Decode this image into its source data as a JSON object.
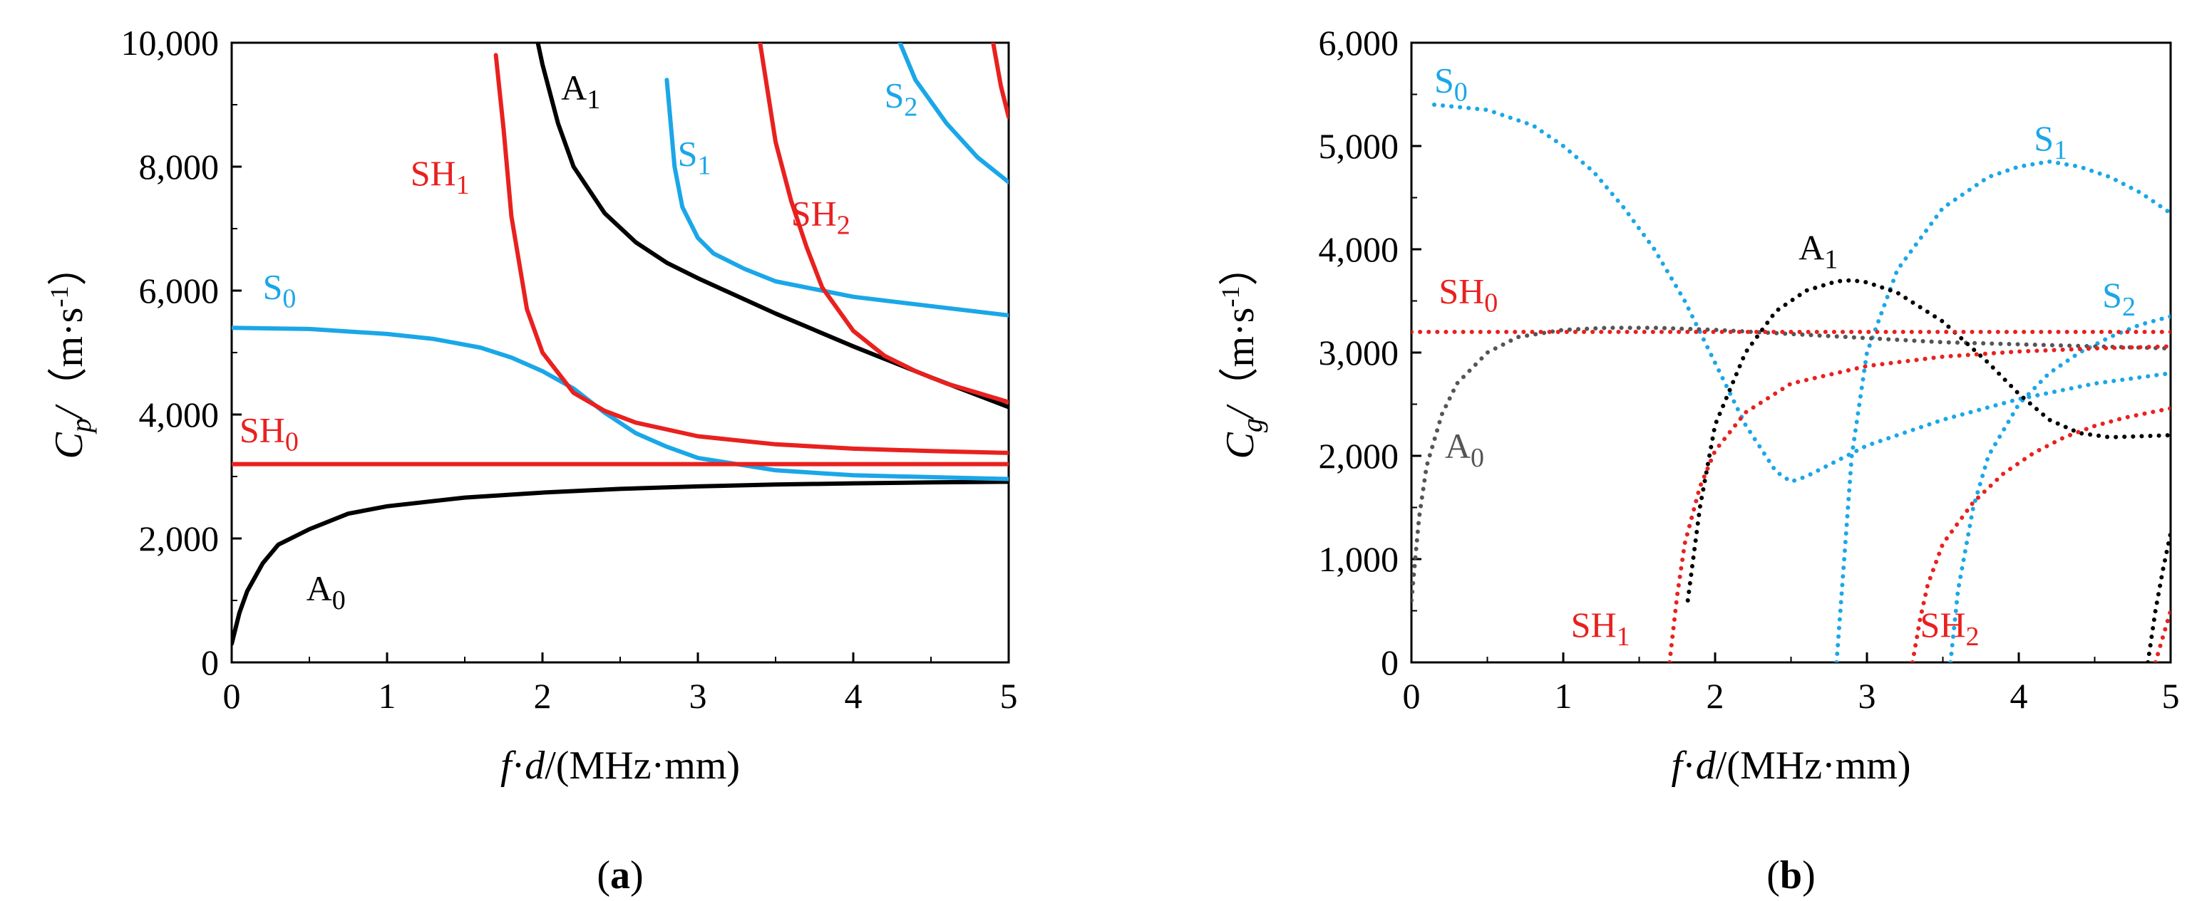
{
  "colors": {
    "A": "#000000",
    "S": "#1aa7e8",
    "SH": "#e8211f",
    "A_dotted_grey": "#555555"
  },
  "chart_data": [
    {
      "type": "line",
      "panel": "(a)",
      "panel_letter": "a",
      "xlabel": {
        "f": "f",
        "dot": "·",
        "d": "d",
        "rest": "/(MHz·mm)"
      },
      "ylabel": {
        "C": "C",
        "sub": "p",
        "slash": "/",
        "unit": "（m·s",
        "sup": "-1",
        "close": "）"
      },
      "xlim": [
        0,
        5
      ],
      "ylim": [
        0,
        10000
      ],
      "xticks": [
        "0",
        "1",
        "2",
        "3",
        "4",
        "5"
      ],
      "yticks": [
        "0",
        "2,000",
        "4,000",
        "6,000",
        "8,000",
        "10,000"
      ],
      "series": [
        {
          "name": "A0",
          "base": "A",
          "sub": "0",
          "family": "A",
          "style": "solid",
          "label_at": [
            0.48,
            1000
          ],
          "x": [
            0.0,
            0.05,
            0.1,
            0.2,
            0.3,
            0.5,
            0.75,
            1.0,
            1.5,
            2.0,
            2.5,
            3.0,
            3.5,
            4.0,
            4.5,
            5.0
          ],
          "y": [
            300,
            800,
            1150,
            1600,
            1900,
            2150,
            2400,
            2520,
            2660,
            2740,
            2800,
            2840,
            2870,
            2890,
            2905,
            2915
          ]
        },
        {
          "name": "A1",
          "base": "A",
          "sub": "1",
          "family": "A",
          "style": "solid",
          "label_at": [
            2.12,
            9080
          ],
          "x": [
            1.97,
            2.0,
            2.1,
            2.2,
            2.4,
            2.6,
            2.8,
            3.0,
            3.5,
            4.0,
            4.5,
            5.0
          ],
          "y": [
            10000,
            9650,
            8700,
            8000,
            7250,
            6780,
            6450,
            6200,
            5630,
            5100,
            4600,
            4120
          ]
        },
        {
          "name": "S0",
          "base": "S",
          "sub": "0",
          "family": "S",
          "style": "solid",
          "label_at": [
            0.2,
            5870
          ],
          "x": [
            0.0,
            0.5,
            1.0,
            1.3,
            1.6,
            1.8,
            2.0,
            2.2,
            2.4,
            2.6,
            2.8,
            3.0,
            3.5,
            4.0,
            5.0
          ],
          "y": [
            5400,
            5380,
            5300,
            5220,
            5080,
            4920,
            4700,
            4420,
            4030,
            3700,
            3480,
            3300,
            3100,
            3020,
            2960
          ]
        },
        {
          "name": "S1",
          "base": "S",
          "sub": "1",
          "family": "S",
          "style": "solid",
          "label_at": [
            2.87,
            8020
          ],
          "x": [
            2.8,
            2.85,
            2.9,
            3.0,
            3.1,
            3.3,
            3.5,
            4.0,
            4.5,
            5.0
          ],
          "y": [
            9400,
            8000,
            7350,
            6850,
            6600,
            6350,
            6150,
            5900,
            5750,
            5600
          ]
        },
        {
          "name": "S2",
          "base": "S",
          "sub": "2",
          "family": "S",
          "style": "solid",
          "label_at": [
            4.2,
            8960
          ],
          "x": [
            4.3,
            4.4,
            4.6,
            4.8,
            5.0
          ],
          "y": [
            10000,
            9400,
            8700,
            8150,
            7750
          ]
        },
        {
          "name": "SH0",
          "base": "SH",
          "sub": "0",
          "family": "SH",
          "style": "solid",
          "label_at": [
            0.05,
            3560
          ],
          "x": [
            0.0,
            5.0
          ],
          "y": [
            3200,
            3200
          ]
        },
        {
          "name": "SH1",
          "base": "SH",
          "sub": "1",
          "family": "SH",
          "style": "solid",
          "label_at": [
            1.15,
            7700
          ],
          "x": [
            1.7,
            1.75,
            1.8,
            1.9,
            2.0,
            2.2,
            2.4,
            2.6,
            3.0,
            3.5,
            4.0,
            4.5,
            5.0
          ],
          "y": [
            9800,
            8600,
            7200,
            5700,
            5000,
            4350,
            4060,
            3870,
            3650,
            3520,
            3450,
            3410,
            3380
          ]
        },
        {
          "name": "SH2",
          "base": "SH",
          "sub": "2",
          "family": "SH",
          "style": "solid",
          "label_at": [
            3.6,
            7050
          ],
          "x": [
            3.4,
            3.45,
            3.5,
            3.6,
            3.7,
            3.8,
            4.0,
            4.2,
            4.4,
            4.6,
            4.8,
            5.0
          ],
          "y": [
            10000,
            9200,
            8400,
            7450,
            6700,
            6050,
            5350,
            4950,
            4700,
            4500,
            4350,
            4200
          ]
        },
        {
          "name": "SH3",
          "base": "",
          "sub": "",
          "family": "SH",
          "style": "solid",
          "label_at": null,
          "x": [
            4.9,
            4.95,
            5.0
          ],
          "y": [
            10000,
            9300,
            8800
          ]
        }
      ]
    },
    {
      "type": "line",
      "panel": "(b)",
      "panel_letter": "b",
      "xlabel": {
        "f": "f",
        "dot": "·",
        "d": "d",
        "rest": "/(MHz·mm)"
      },
      "ylabel": {
        "C": "C",
        "sub": "g",
        "slash": "/",
        "unit": "（m·s",
        "sup": "-1",
        "close": "）"
      },
      "xlim": [
        0,
        5
      ],
      "ylim": [
        0,
        6000
      ],
      "xticks": [
        "0",
        "1",
        "2",
        "3",
        "4",
        "5"
      ],
      "yticks": [
        "0",
        "1,000",
        "2,000",
        "3,000",
        "4,000",
        "5,000",
        "6,000"
      ],
      "series": [
        {
          "name": "S0",
          "base": "S",
          "sub": "0",
          "family": "S",
          "style": "dotted",
          "label_at": [
            0.15,
            5520
          ],
          "x": [
            0.15,
            0.5,
            0.8,
            1.0,
            1.2,
            1.4,
            1.6,
            1.8,
            2.0,
            2.2,
            2.4,
            2.5,
            2.6,
            2.8,
            3.0,
            3.5,
            4.0,
            4.5,
            5.0
          ],
          "y": [
            5400,
            5350,
            5200,
            5000,
            4750,
            4400,
            4000,
            3500,
            2900,
            2300,
            1850,
            1750,
            1800,
            1950,
            2100,
            2350,
            2550,
            2700,
            2800
          ]
        },
        {
          "name": "S1",
          "base": "S",
          "sub": "1",
          "family": "S",
          "style": "dotted",
          "label_at": [
            4.1,
            4960
          ],
          "x": [
            2.8,
            2.85,
            2.9,
            3.0,
            3.2,
            3.5,
            3.8,
            4.0,
            4.2,
            4.4,
            4.6,
            4.8,
            5.0
          ],
          "y": [
            0,
            1000,
            2000,
            3000,
            3800,
            4400,
            4700,
            4800,
            4850,
            4800,
            4700,
            4550,
            4350
          ]
        },
        {
          "name": "S2",
          "base": "S",
          "sub": "2",
          "family": "S",
          "style": "dotted",
          "label_at": [
            4.55,
            3440
          ],
          "x": [
            3.55,
            3.6,
            3.7,
            3.8,
            4.0,
            4.2,
            4.4,
            4.6,
            4.8,
            5.0
          ],
          "y": [
            0,
            700,
            1500,
            2000,
            2500,
            2800,
            3000,
            3150,
            3270,
            3350
          ]
        },
        {
          "name": "A0",
          "base": "A",
          "sub": "0",
          "family": "A_dotted_grey",
          "style": "dotted",
          "label_at": [
            0.22,
            1980
          ],
          "x": [
            0.0,
            0.05,
            0.1,
            0.2,
            0.3,
            0.5,
            0.7,
            1.0,
            1.3,
            1.6,
            2.0,
            2.5,
            3.0,
            3.5,
            4.0,
            4.5,
            5.0
          ],
          "y": [
            600,
            1400,
            1900,
            2400,
            2700,
            3000,
            3150,
            3220,
            3240,
            3240,
            3220,
            3180,
            3140,
            3100,
            3080,
            3060,
            3040
          ]
        },
        {
          "name": "A1",
          "base": "A",
          "sub": "1",
          "family": "A",
          "style": "dotted",
          "label_at": [
            2.55,
            3900
          ],
          "x": [
            1.82,
            1.9,
            2.0,
            2.2,
            2.4,
            2.6,
            2.8,
            2.9,
            3.0,
            3.2,
            3.5,
            3.8,
            4.0,
            4.2,
            4.4,
            4.6,
            4.8,
            5.0
          ],
          "y": [
            600,
            1500,
            2300,
            3000,
            3400,
            3600,
            3690,
            3700,
            3680,
            3580,
            3300,
            2900,
            2600,
            2350,
            2220,
            2180,
            2190,
            2200
          ]
        },
        {
          "name": "A2",
          "base": "",
          "sub": "",
          "family": "A",
          "style": "dotted",
          "label_at": null,
          "x": [
            4.85,
            4.9,
            4.95,
            5.0
          ],
          "y": [
            0,
            500,
            900,
            1250
          ]
        },
        {
          "name": "SH0",
          "base": "SH",
          "sub": "0",
          "family": "SH",
          "style": "dotted",
          "label_at": [
            0.18,
            3480
          ],
          "x": [
            0.0,
            5.0
          ],
          "y": [
            3200,
            3200
          ]
        },
        {
          "name": "SH1",
          "base": "SH",
          "sub": "1",
          "family": "SH",
          "style": "dotted",
          "label_at": [
            1.05,
            250
          ],
          "x": [
            1.7,
            1.75,
            1.8,
            1.9,
            2.0,
            2.2,
            2.5,
            3.0,
            3.5,
            4.0,
            4.5,
            5.0
          ],
          "y": [
            0,
            650,
            1150,
            1700,
            2050,
            2420,
            2700,
            2870,
            2960,
            3010,
            3040,
            3060
          ]
        },
        {
          "name": "SH2",
          "base": "SH",
          "sub": "2",
          "family": "SH",
          "style": "dotted",
          "label_at": [
            3.35,
            250
          ],
          "x": [
            3.3,
            3.35,
            3.4,
            3.5,
            3.7,
            3.9,
            4.1,
            4.3,
            4.5,
            4.7,
            4.9,
            5.0
          ],
          "y": [
            0,
            420,
            750,
            1150,
            1550,
            1830,
            2030,
            2180,
            2290,
            2370,
            2430,
            2460
          ]
        },
        {
          "name": "SH3",
          "base": "",
          "sub": "",
          "family": "SH",
          "style": "dotted",
          "label_at": null,
          "x": [
            4.9,
            4.95,
            5.0
          ],
          "y": [
            0,
            250,
            500
          ]
        }
      ]
    }
  ]
}
